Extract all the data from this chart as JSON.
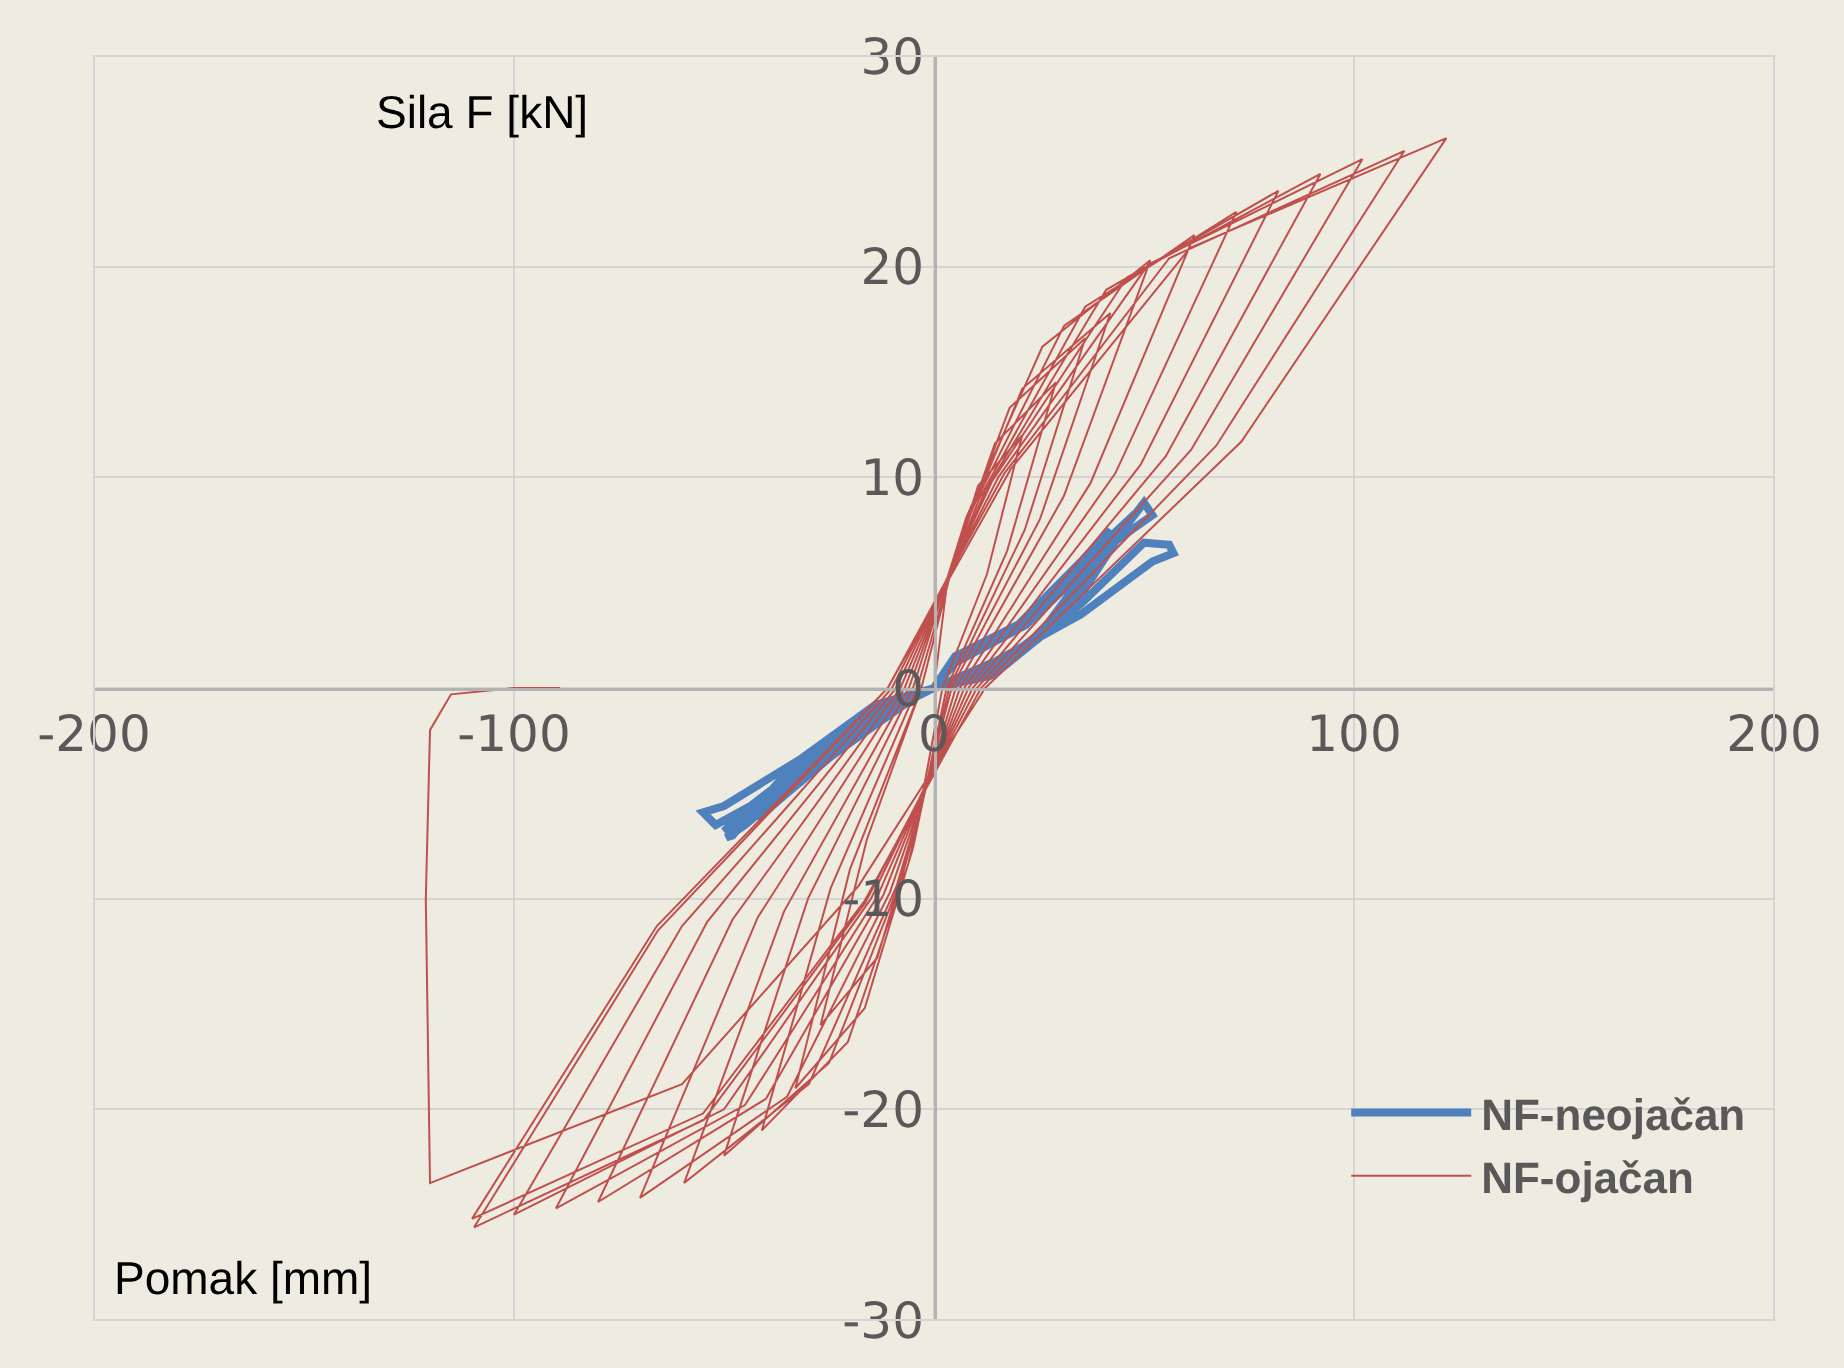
{
  "chart_data": {
    "type": "line",
    "xlabel": "Pomak [mm]",
    "ylabel": "Sila F [kN]",
    "xlim": [
      -200,
      200
    ],
    "ylim": [
      -30,
      30
    ],
    "xticks": [
      -200,
      -100,
      0,
      100,
      200
    ],
    "yticks": [
      -30,
      -20,
      -10,
      0,
      10,
      20,
      30
    ],
    "grid": true,
    "legend": "bottom right",
    "marker": "none",
    "line_style": "solid",
    "series": [
      {
        "name": "NF-neojačan",
        "color": "#4f81bd",
        "x": [
          0,
          10,
          25,
          38,
          42,
          35,
          20,
          5,
          0,
          -10,
          -25,
          -38,
          -42,
          -35,
          -20,
          -5,
          0,
          12,
          28,
          42,
          48,
          40,
          22,
          5,
          0,
          -12,
          -28,
          -45,
          -50,
          -40,
          -20,
          -5,
          0,
          14,
          32,
          45,
          50,
          52,
          42,
          22,
          5,
          0,
          -14,
          -32,
          -50,
          -55,
          -52,
          -40,
          -20,
          -5,
          0,
          15,
          35,
          50,
          56,
          57,
          52,
          35,
          15,
          0,
          -15,
          -35,
          -48,
          -49.5,
          -45,
          -30,
          -10
        ],
        "values": [
          0,
          0.5,
          2.5,
          6,
          7.5,
          6,
          3,
          1.5,
          0,
          -0.8,
          -3,
          -5.5,
          -6.2,
          -5,
          -2.5,
          -0.5,
          0,
          0.6,
          3,
          6.8,
          8.3,
          6.8,
          3.2,
          1.5,
          0,
          -0.8,
          -3.2,
          -5.8,
          -6.8,
          -5.5,
          -2.6,
          -0.5,
          0,
          0.6,
          3.5,
          7.5,
          8.8,
          8.2,
          6.8,
          3,
          1.2,
          0,
          -0.8,
          -3.4,
          -5.6,
          -5.9,
          -6.5,
          -5.2,
          -2.5,
          -0.4,
          0,
          0.8,
          4,
          6.9,
          6.8,
          6.4,
          6,
          3.5,
          1.3,
          0,
          -1,
          -4,
          -7,
          -7.1,
          -6.5,
          -4,
          -1
        ]
      },
      {
        "name": "NF-ojačan",
        "color": "#c0504d",
        "x": [
          0,
          3,
          10.5,
          21,
          12.6,
          2,
          -4,
          -13.5,
          -27,
          -16,
          -3,
          4.4,
          14.5,
          29,
          17.4,
          3,
          -5,
          -16.5,
          -33,
          -20,
          -3,
          5.4,
          18,
          36,
          21.6,
          3.6,
          -6.2,
          -20.5,
          -41,
          -24.6,
          -4,
          6.3,
          21,
          42,
          25.2,
          4.2,
          -7.5,
          -25,
          -50,
          -30,
          -5,
          7.7,
          25.8,
          51.5,
          30.9,
          5.2,
          -8.9,
          -29.8,
          -59.5,
          -35.7,
          -6,
          9.3,
          31,
          62,
          37.2,
          6.2,
          -10.5,
          -35,
          -70,
          -42,
          -7,
          10.8,
          36,
          72,
          43.2,
          7.2,
          -12,
          -40,
          -80,
          -48,
          -8,
          12.3,
          41,
          82,
          49.2,
          8.2,
          -13.5,
          -45,
          -90,
          -54,
          -9,
          13.8,
          46,
          92,
          55.2,
          9.2,
          -15,
          -50,
          -100,
          -60,
          -10,
          15.3,
          51,
          102,
          61.2,
          10.2,
          -16.4,
          -54.8,
          -109.5,
          -65.7,
          -11,
          16.8,
          56,
          112,
          67.2,
          11.2,
          -16.5,
          -55,
          -110,
          -66,
          -11,
          18.3,
          61,
          122,
          73.2,
          12.2,
          -18,
          -60,
          -120,
          -121,
          -120,
          -115,
          -100,
          -89
        ],
        "values": [
          0,
          4.8,
          9.6,
          12,
          5.4,
          0,
          -6.4,
          -12.8,
          -16,
          -7.2,
          0,
          5.8,
          11.6,
          14.5,
          6.5,
          0,
          -7.6,
          -15.2,
          -19,
          -8.6,
          0,
          6.6,
          13.3,
          16.6,
          7.5,
          0,
          -8.4,
          -16.8,
          -21,
          -9.5,
          0,
          7.1,
          14.2,
          17.8,
          8,
          0,
          -8.9,
          -17.8,
          -22.2,
          -10,
          0,
          8.1,
          16.2,
          20.3,
          9.1,
          0,
          -9.4,
          -18.8,
          -23.5,
          -10.6,
          0,
          8.6,
          17.2,
          21.5,
          9.7,
          0,
          -9.7,
          -19.4,
          -24.2,
          -10.9,
          0,
          9,
          18.1,
          22.6,
          10.2,
          0,
          -9.8,
          -19.5,
          -24.4,
          -11,
          0,
          9.4,
          18.9,
          23.6,
          10.6,
          0,
          -9.9,
          -19.8,
          -24.7,
          -11.1,
          0,
          9.8,
          19.5,
          24.4,
          11,
          0,
          -10,
          -20,
          -25,
          -11.3,
          0,
          10,
          20.1,
          25.1,
          11.3,
          0,
          -10.2,
          -20.5,
          -25.6,
          -11.5,
          0,
          10.2,
          20.4,
          25.5,
          11.5,
          0,
          -10.1,
          -20.2,
          -25.2,
          -11.3,
          0,
          10.4,
          20.9,
          26.1,
          11.7,
          0,
          -9.4,
          -18.8,
          -23.5,
          -10,
          -2,
          -0.3,
          0,
          0
        ]
      }
    ]
  }
}
